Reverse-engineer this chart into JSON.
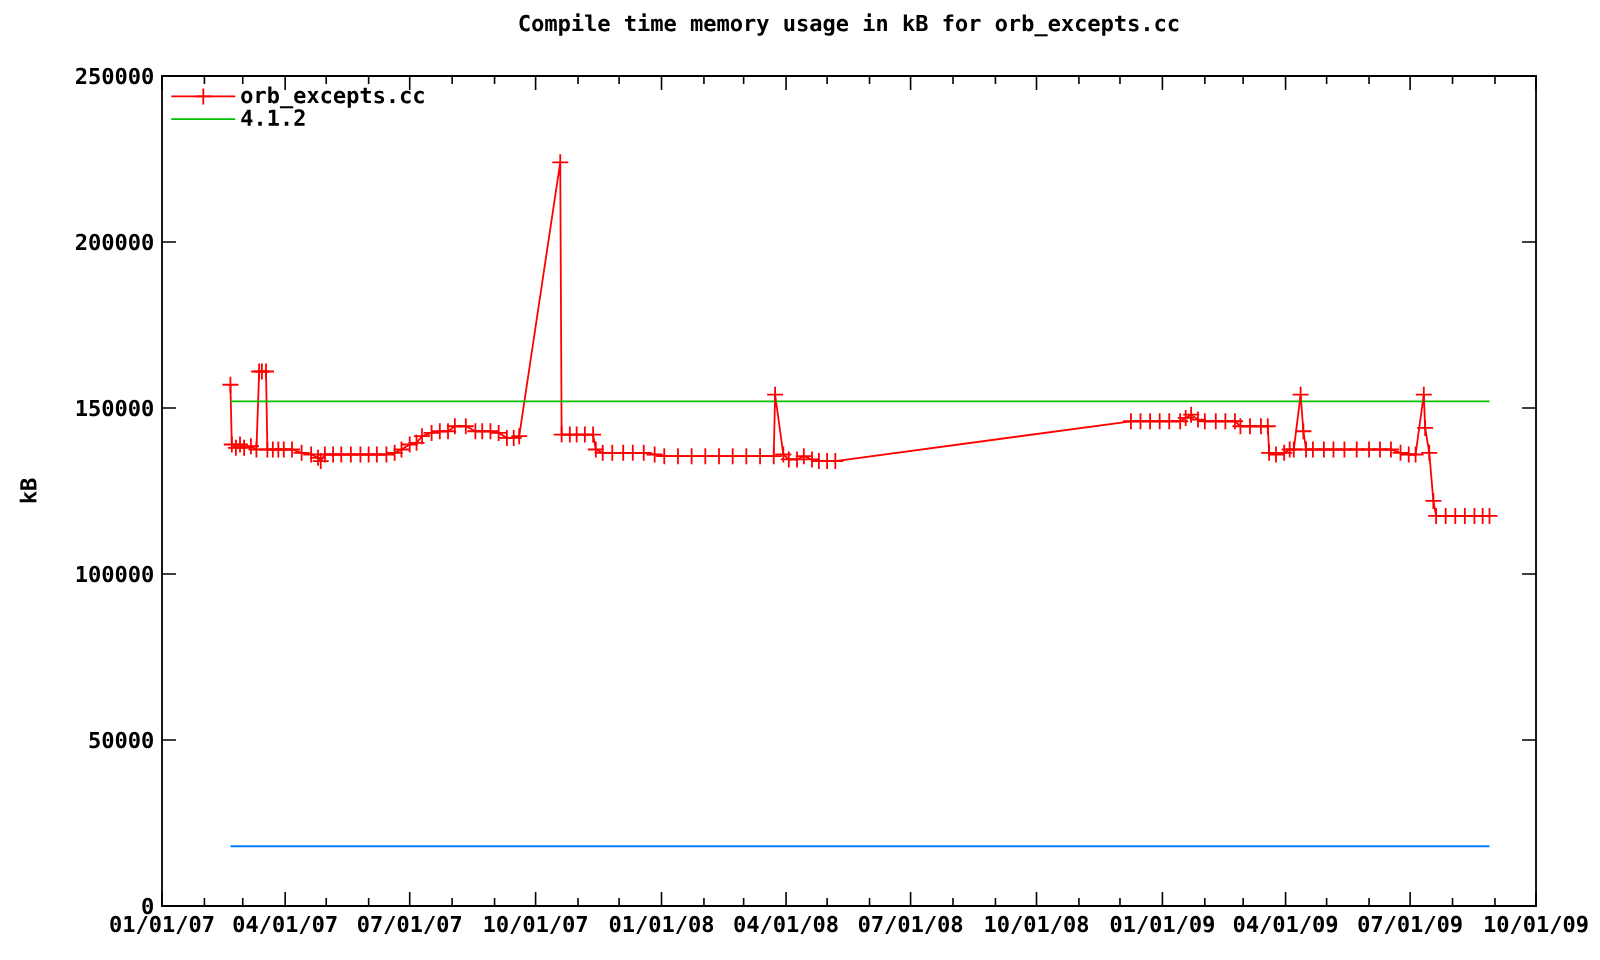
{
  "chart_data": {
    "type": "line",
    "title": "Compile time memory usage in kB for orb_excepts.cc",
    "ylabel": "kB",
    "xlim": [
      "2007-01-01",
      "2009-10-01"
    ],
    "ylim": [
      0,
      250000
    ],
    "xticks": [
      {
        "value": "2007-01-01",
        "label": "01/01/07"
      },
      {
        "value": "2007-02-01",
        "label": null
      },
      {
        "value": "2007-03-01",
        "label": null
      },
      {
        "value": "2007-04-01",
        "label": "04/01/07"
      },
      {
        "value": "2007-05-01",
        "label": null
      },
      {
        "value": "2007-06-01",
        "label": null
      },
      {
        "value": "2007-07-01",
        "label": "07/01/07"
      },
      {
        "value": "2007-08-01",
        "label": null
      },
      {
        "value": "2007-09-01",
        "label": null
      },
      {
        "value": "2007-10-01",
        "label": "10/01/07"
      },
      {
        "value": "2007-11-01",
        "label": null
      },
      {
        "value": "2007-12-01",
        "label": null
      },
      {
        "value": "2008-01-01",
        "label": "01/01/08"
      },
      {
        "value": "2008-02-01",
        "label": null
      },
      {
        "value": "2008-03-01",
        "label": null
      },
      {
        "value": "2008-04-01",
        "label": "04/01/08"
      },
      {
        "value": "2008-05-01",
        "label": null
      },
      {
        "value": "2008-06-01",
        "label": null
      },
      {
        "value": "2008-07-01",
        "label": "07/01/08"
      },
      {
        "value": "2008-08-01",
        "label": null
      },
      {
        "value": "2008-09-01",
        "label": null
      },
      {
        "value": "2008-10-01",
        "label": "10/01/08"
      },
      {
        "value": "2008-11-01",
        "label": null
      },
      {
        "value": "2008-12-01",
        "label": null
      },
      {
        "value": "2009-01-01",
        "label": "01/01/09"
      },
      {
        "value": "2009-02-01",
        "label": null
      },
      {
        "value": "2009-03-01",
        "label": null
      },
      {
        "value": "2009-04-01",
        "label": "04/01/09"
      },
      {
        "value": "2009-05-01",
        "label": null
      },
      {
        "value": "2009-06-01",
        "label": null
      },
      {
        "value": "2009-07-01",
        "label": "07/01/09"
      },
      {
        "value": "2009-08-01",
        "label": null
      },
      {
        "value": "2009-09-01",
        "label": null
      },
      {
        "value": "2009-10-01",
        "label": "10/01/09"
      }
    ],
    "yticks": [
      0,
      50000,
      100000,
      150000,
      200000,
      250000
    ],
    "legend": "top left",
    "series": [
      {
        "name": "orb_excepts.cc",
        "color": "#ff0000",
        "marker": "cross",
        "x": [
          "2007-02-20",
          "2007-02-21",
          "2007-02-24",
          "2007-02-27",
          "2007-03-02",
          "2007-03-07",
          "2007-03-11",
          "2007-03-13",
          "2007-03-15",
          "2007-03-18",
          "2007-03-19",
          "2007-03-23",
          "2007-03-27",
          "2007-03-31",
          "2007-04-06",
          "2007-04-13",
          "2007-04-20",
          "2007-04-25",
          "2007-04-27",
          "2007-04-30",
          "2007-05-06",
          "2007-05-12",
          "2007-05-19",
          "2007-05-26",
          "2007-06-01",
          "2007-06-07",
          "2007-06-14",
          "2007-06-20",
          "2007-06-25",
          "2007-07-01",
          "2007-07-06",
          "2007-07-10",
          "2007-07-17",
          "2007-07-23",
          "2007-07-29",
          "2007-08-03",
          "2007-08-11",
          "2007-08-18",
          "2007-08-23",
          "2007-08-29",
          "2007-09-04",
          "2007-09-10",
          "2007-09-15",
          "2007-09-19",
          "2007-10-19",
          "2007-10-20",
          "2007-10-26",
          "2007-10-31",
          "2007-11-06",
          "2007-11-12",
          "2007-11-14",
          "2007-11-19",
          "2007-11-26",
          "2007-12-04",
          "2007-12-11",
          "2007-12-19",
          "2007-12-27",
          "2008-01-03",
          "2008-01-13",
          "2008-01-23",
          "2008-02-02",
          "2008-02-12",
          "2008-02-22",
          "2008-03-03",
          "2008-03-13",
          "2008-03-23",
          "2008-03-24",
          "2008-03-30",
          "2008-04-03",
          "2008-04-09",
          "2008-04-14",
          "2008-04-20",
          "2008-04-25",
          "2008-05-01",
          "2008-05-07",
          "2008-12-09",
          "2008-12-16",
          "2008-12-23",
          "2008-12-30",
          "2009-01-06",
          "2009-01-14",
          "2009-01-18",
          "2009-01-22",
          "2009-01-27",
          "2009-02-01",
          "2009-02-09",
          "2009-02-16",
          "2009-02-23",
          "2009-02-27",
          "2009-03-06",
          "2009-03-14",
          "2009-03-19",
          "2009-03-20",
          "2009-03-25",
          "2009-03-31",
          "2009-04-04",
          "2009-04-07",
          "2009-04-12",
          "2009-04-14",
          "2009-04-16",
          "2009-04-21",
          "2009-04-29",
          "2009-05-06",
          "2009-05-14",
          "2009-05-23",
          "2009-06-01",
          "2009-06-09",
          "2009-06-17",
          "2009-06-24",
          "2009-06-30",
          "2009-07-05",
          "2009-07-11",
          "2009-07-12",
          "2009-07-15",
          "2009-07-18",
          "2009-07-20",
          "2009-07-27",
          "2009-08-03",
          "2009-08-10",
          "2009-08-17",
          "2009-08-23",
          "2009-08-28"
        ],
        "values": [
          157000,
          139000,
          138000,
          139000,
          138000,
          138500,
          137500,
          161000,
          161000,
          161000,
          137500,
          137500,
          137500,
          137500,
          137500,
          136500,
          136000,
          135000,
          134000,
          136000,
          136000,
          136000,
          136000,
          136000,
          136000,
          136000,
          136000,
          136500,
          137500,
          139000,
          139500,
          141500,
          142500,
          143000,
          143000,
          144500,
          144500,
          143000,
          143000,
          143000,
          142500,
          141000,
          141000,
          141500,
          224000,
          142000,
          142000,
          142000,
          142000,
          142000,
          137500,
          136500,
          136500,
          136500,
          136500,
          136500,
          136000,
          135500,
          135500,
          135500,
          135500,
          135500,
          135500,
          135500,
          135500,
          135500,
          154000,
          136000,
          134500,
          134500,
          135500,
          134500,
          134000,
          134000,
          134000,
          146000,
          146000,
          146000,
          146000,
          146000,
          146000,
          147000,
          148000,
          146500,
          146000,
          146000,
          146000,
          146000,
          144500,
          144500,
          144500,
          144500,
          136500,
          136000,
          136500,
          137500,
          137500,
          154000,
          143000,
          137500,
          137500,
          137500,
          137500,
          137500,
          137500,
          137500,
          137500,
          137500,
          136500,
          136000,
          136000,
          154000,
          144000,
          136500,
          122000,
          117500,
          117500,
          117500,
          117500,
          117500,
          117500,
          117500
        ]
      },
      {
        "name": "4.1.2",
        "color": "#00c000",
        "marker": "none",
        "x": [
          "2007-02-20",
          "2009-08-28"
        ],
        "values": [
          152000,
          152000
        ]
      },
      {
        "color": "#0080ff",
        "marker": "none",
        "x": [
          "2007-02-20",
          "2009-08-28"
        ],
        "values": [
          18000,
          18000
        ]
      }
    ]
  }
}
